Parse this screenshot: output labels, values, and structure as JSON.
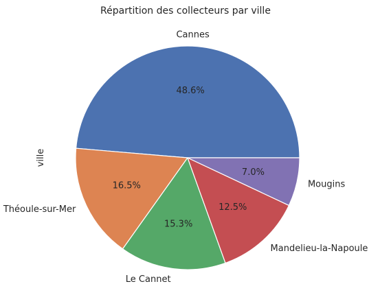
{
  "chart_data": {
    "type": "pie",
    "title": "Répartition des collecteurs par ville",
    "ylabel": "ville",
    "start_angle_deg": 0,
    "direction": "counterclockwise",
    "slices": [
      {
        "label": "Cannes",
        "value": 48.6,
        "pct_label": "48.6%",
        "color": "#4c72b0"
      },
      {
        "label": "Théoule-sur-Mer",
        "value": 16.5,
        "pct_label": "16.5%",
        "color": "#dd8452"
      },
      {
        "label": "Le Cannet",
        "value": 15.3,
        "pct_label": "15.3%",
        "color": "#55a868"
      },
      {
        "label": "Mandelieu-la-Napoule",
        "value": 12.5,
        "pct_label": "12.5%",
        "color": "#c44e52"
      },
      {
        "label": "Mougins",
        "value": 7.0,
        "pct_label": "7.0%",
        "color": "#8172b3"
      }
    ]
  }
}
